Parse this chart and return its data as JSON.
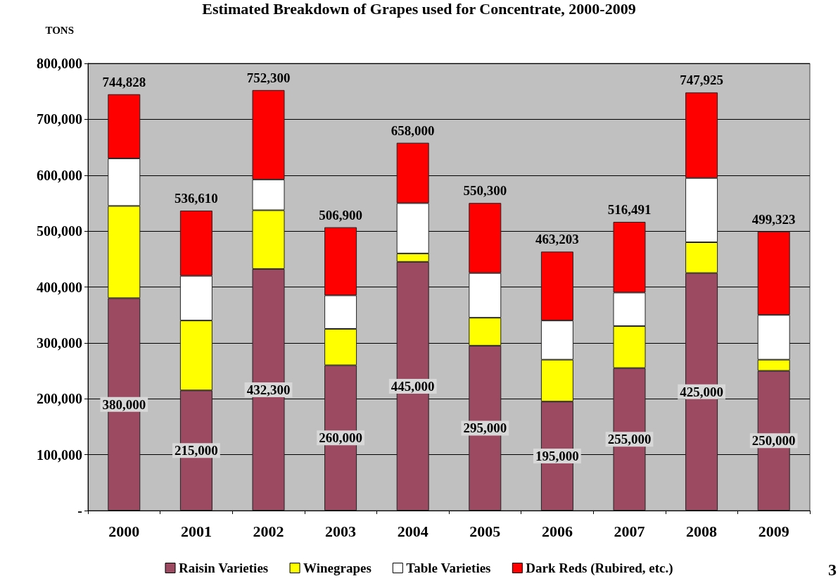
{
  "chart_data": {
    "type": "bar",
    "title": "Estimated Breakdown of Grapes used for Concentrate, 2000-2009",
    "ylabel": "TONS",
    "categories": [
      "2000",
      "2001",
      "2002",
      "2003",
      "2004",
      "2005",
      "2006",
      "2007",
      "2008",
      "2009"
    ],
    "stacked": true,
    "series": [
      {
        "name": "Raisin Varieties",
        "color": "#9b4a62",
        "values": [
          380000,
          215000,
          432300,
          260000,
          445000,
          295000,
          195000,
          255000,
          425000,
          250000
        ],
        "value_labels": [
          "380,000",
          "215,000",
          "432,300",
          "260,000",
          "445,000",
          "295,000",
          "195,000",
          "255,000",
          "425,000",
          "250,000"
        ]
      },
      {
        "name": "Winegrapes",
        "color": "#ffff00",
        "values": [
          165000,
          125000,
          105000,
          65000,
          15000,
          50000,
          75000,
          75000,
          55000,
          20000
        ]
      },
      {
        "name": "Table Varieties",
        "color": "#ffffff",
        "values": [
          85000,
          80000,
          55000,
          60000,
          90000,
          80000,
          70000,
          60000,
          115000,
          80000
        ]
      },
      {
        "name": "Dark Reds (Rubired, etc.)",
        "color": "#ff0000",
        "values": [
          114828,
          116610,
          160000,
          121900,
          108000,
          125300,
          123203,
          126491,
          152925,
          149323
        ]
      }
    ],
    "totals": [
      "744,828",
      "536,610",
      "752,300",
      "506,900",
      "658,000",
      "550,300",
      "463,203",
      "516,491",
      "747,925",
      "499,323"
    ],
    "ylim": [
      0,
      800000
    ],
    "yticks": [
      {
        "value": 0,
        "label": "-"
      },
      {
        "value": 100000,
        "label": "100,000"
      },
      {
        "value": 200000,
        "label": "200,000"
      },
      {
        "value": 300000,
        "label": "300,000"
      },
      {
        "value": 400000,
        "label": "400,000"
      },
      {
        "value": 500000,
        "label": "500,000"
      },
      {
        "value": 600000,
        "label": "600,000"
      },
      {
        "value": 700000,
        "label": "700,000"
      },
      {
        "value": 800000,
        "label": "800,000"
      }
    ],
    "grid": "y",
    "legend": "bottom",
    "annotations": [
      "3"
    ]
  }
}
